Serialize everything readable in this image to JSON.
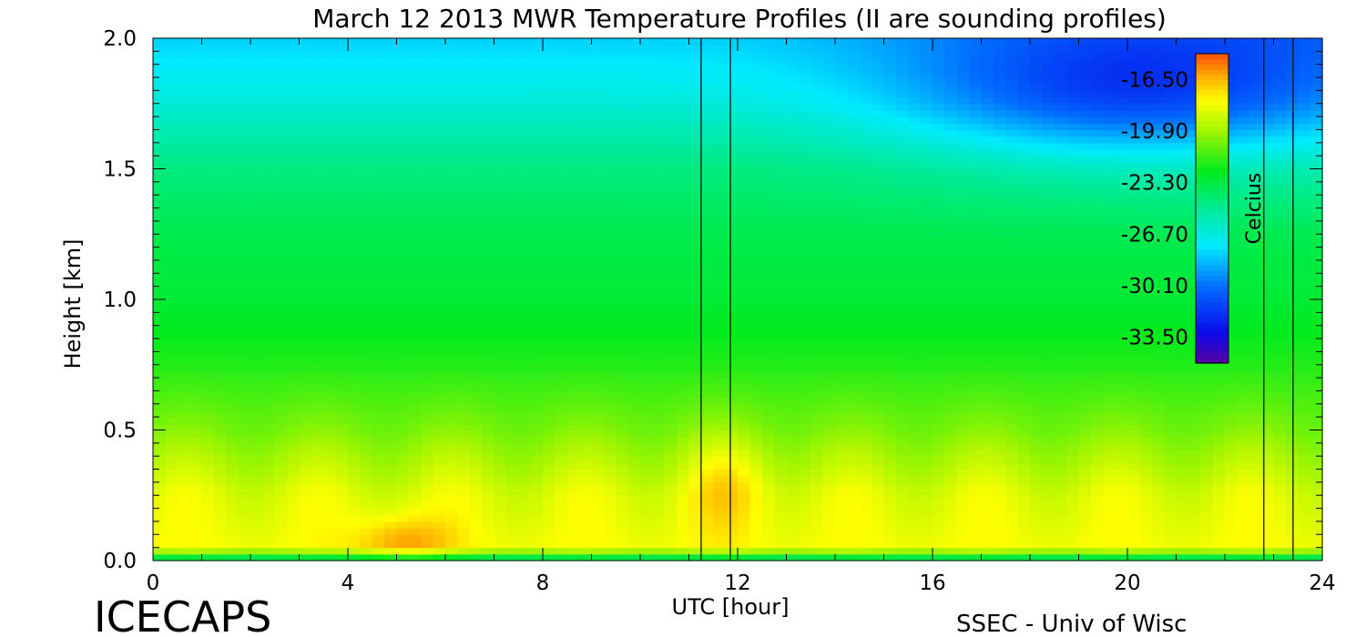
{
  "chart_data": {
    "type": "heatmap",
    "title": "March 12 2013 MWR Temperature Profiles (II are sounding profiles)",
    "xlabel": "UTC [hour]",
    "ylabel": "Height [km]",
    "xlim": [
      0,
      24
    ],
    "ylim": [
      0,
      2.0
    ],
    "x_ticks": [
      0,
      4,
      8,
      12,
      16,
      20,
      24
    ],
    "x_tick_labels": [
      "0",
      "4",
      "8",
      "12",
      "16",
      "20",
      "24"
    ],
    "y_ticks": [
      0.0,
      0.5,
      1.0,
      1.5,
      2.0
    ],
    "y_tick_labels": [
      "0.0",
      "0.5",
      "1.0",
      "1.5",
      "2.0"
    ],
    "colorbar": {
      "label": "Celcius",
      "range": [
        -35.2,
        -14.8
      ],
      "tick_values": [
        -16.5,
        -19.9,
        -23.3,
        -26.7,
        -30.1,
        -33.5
      ],
      "tick_labels": [
        "-16.50",
        "-19.90",
        "-23.30",
        "-26.70",
        "-30.10",
        "-33.50"
      ],
      "placement": "inside plot, top-right"
    },
    "sounding_profile_times_utc": [
      11.25,
      11.85,
      22.8,
      23.4
    ],
    "approx_temperature_profile_by_height_km": {
      "heights": [
        0.0,
        0.05,
        0.25,
        0.5,
        0.75,
        1.0,
        1.25,
        1.5,
        1.75,
        2.0
      ],
      "temperatures_c": [
        -25.0,
        -18.0,
        -18.5,
        -20.5,
        -22.0,
        -23.0,
        -23.5,
        -24.5,
        -26.5,
        -28.0
      ]
    },
    "notable_features": [
      {
        "description": "warmest pocket near surface",
        "x_range": [
          4.3,
          6.0
        ],
        "height_range": [
          0.0,
          0.15
        ],
        "temperature_c": -16.0
      },
      {
        "description": "warm layer near 0.3 km",
        "x_range": [
          11.0,
          12.6
        ],
        "height_range": [
          0.15,
          0.45
        ],
        "temperature_c": -17.5
      },
      {
        "description": "cold air aloft",
        "x_range": [
          16.0,
          24.0
        ],
        "height_range": [
          1.6,
          2.0
        ],
        "temperature_c": -31.0
      }
    ]
  },
  "footer": {
    "left": "ICECAPS",
    "right": "SSEC - Univ of Wisc"
  }
}
